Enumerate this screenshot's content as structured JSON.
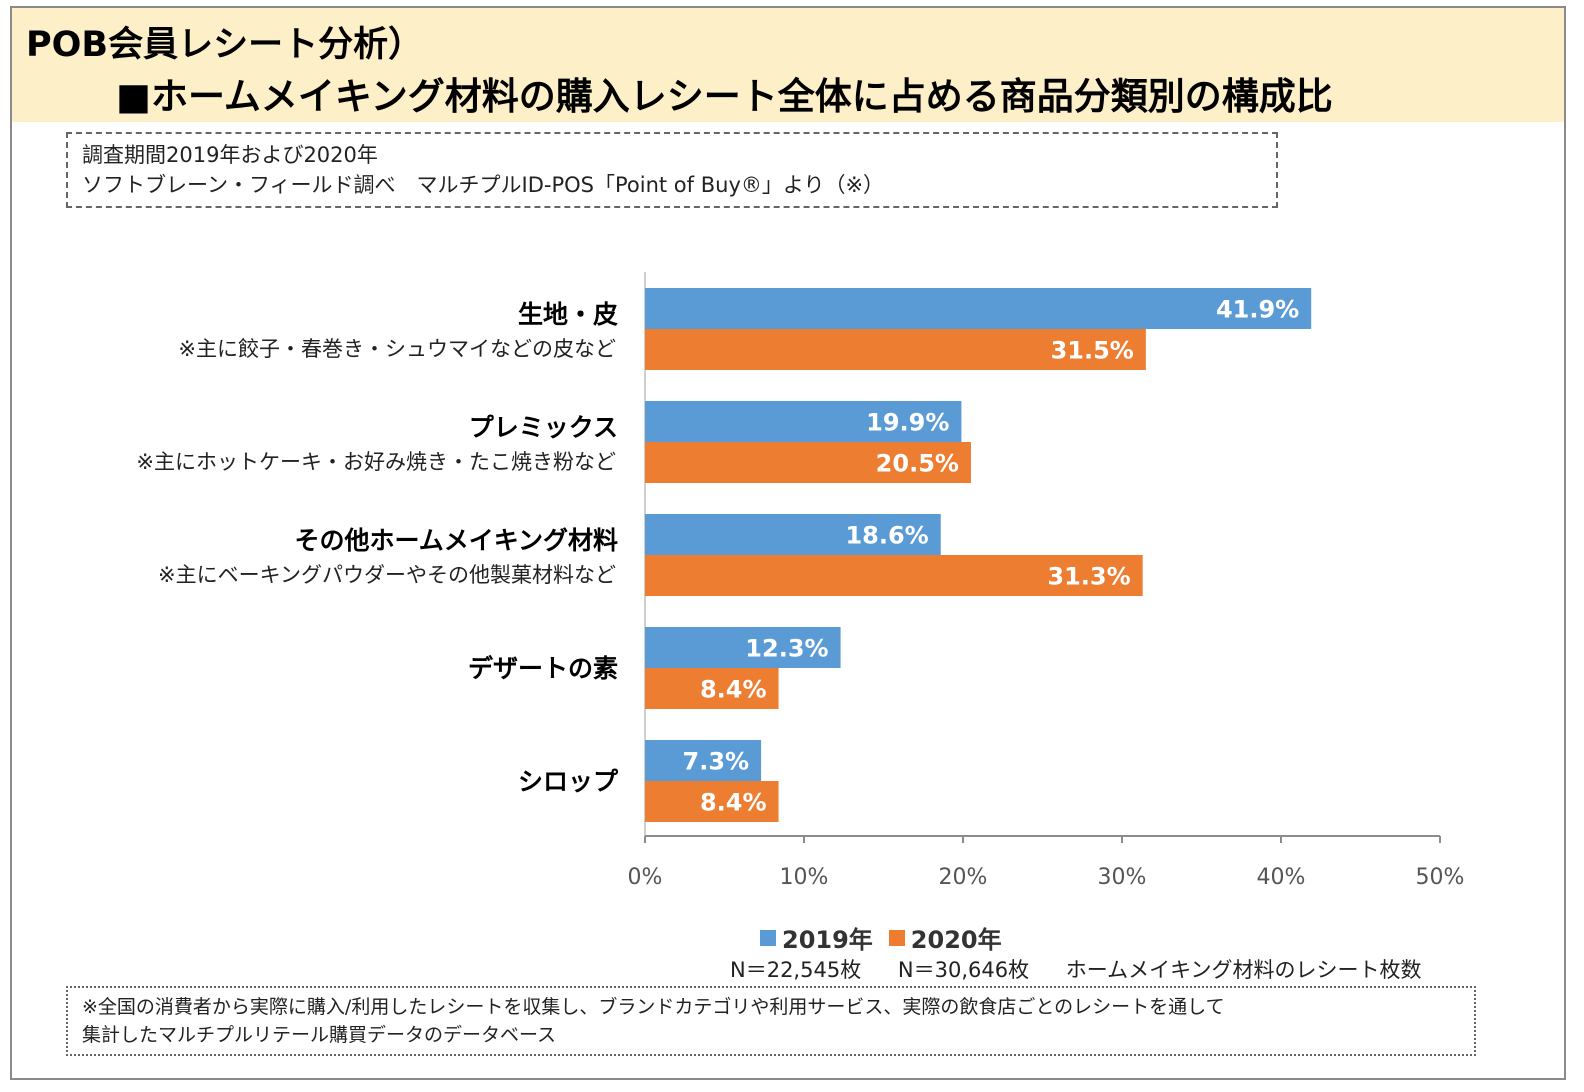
{
  "title": {
    "line1": "POB会員レシート分析）",
    "line2": "■ホームメイキング材料の購入レシート全体に占める商品分類別の構成比"
  },
  "source": {
    "line1": "調査期間2019年および2020年",
    "line2": "ソフトブレーン・フィールド調べ　マルチプルID-POS「Point of Buy®」より（※）"
  },
  "colors": {
    "series_2019": "#5b9bd5",
    "series_2020": "#ed7d31"
  },
  "chart_data": {
    "type": "bar",
    "orientation": "horizontal",
    "categories": [
      {
        "name": "生地・皮",
        "note": "※主に餃子・春巻き・シュウマイなどの皮など"
      },
      {
        "name": "プレミックス",
        "note": "※主にホットケーキ・お好み焼き・たこ焼き粉など"
      },
      {
        "name": "その他ホームメイキング材料",
        "note": "※主にベーキングパウダーやその他製菓材料など"
      },
      {
        "name": "デザートの素",
        "note": ""
      },
      {
        "name": "シロップ",
        "note": ""
      }
    ],
    "series": [
      {
        "name": "2019年",
        "values": [
          41.9,
          19.9,
          18.6,
          12.3,
          7.3
        ],
        "labels": [
          "41.9%",
          "19.9%",
          "18.6%",
          "12.3%",
          "7.3%"
        ]
      },
      {
        "name": "2020年",
        "values": [
          31.5,
          20.5,
          31.3,
          8.4,
          8.4
        ],
        "labels": [
          "31.5%",
          "20.5%",
          "31.3%",
          "8.4%",
          "8.4%"
        ]
      }
    ],
    "xlim": [
      0,
      50
    ],
    "x_ticks": [
      0,
      10,
      20,
      30,
      40,
      50
    ],
    "x_tick_labels": [
      "0%",
      "10%",
      "20%",
      "30%",
      "40%",
      "50%"
    ],
    "grid": false,
    "legend_position": "bottom"
  },
  "counts": {
    "n2019": "N＝22,545枚",
    "n2020": "N＝30,646枚",
    "desc": "ホームメイキング材料のレシート枚数"
  },
  "note": {
    "line1": "※全国の消費者から実際に購入/利用したレシートを収集し、ブランドカテゴリや利用サービス、実際の飲食店ごとのレシートを通して",
    "line2": "集計したマルチプルリテール購買データのデータベース"
  }
}
